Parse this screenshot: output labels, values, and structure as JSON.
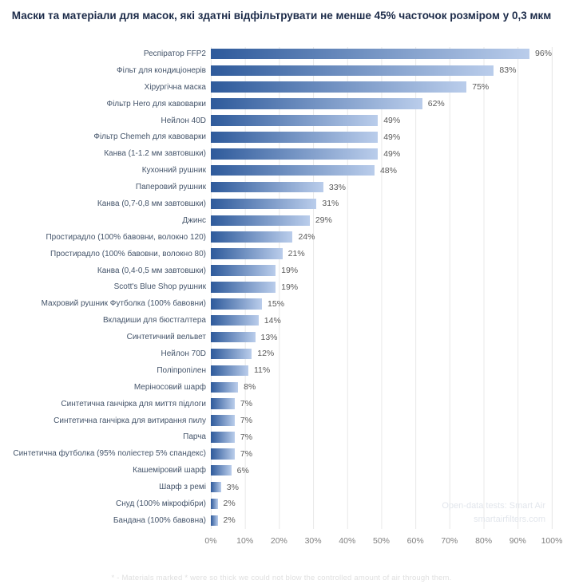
{
  "title": "Маски та матеріали для масок, які здатні відфільтрувати не менше 45% часточок розміром у 0,3 мкм",
  "chart_data": {
    "type": "bar",
    "orientation": "horizontal",
    "title": "Маски та матеріали для масок, які здатні відфільтрувати не менше 45% часточок розміром у 0,3 мкм",
    "categories": [
      "Респіратор FFP2",
      "Фільт для кондиціонерів",
      "Хірургічна маска",
      "Фільтр Hero для кавоварки",
      "Нейлон 40D",
      "Фільтр Chemeh для кавоварки",
      "Канва (1-1.2 мм завтовшки)",
      "Кухонний рушник",
      "Паперовий рушник",
      "Канва (0,7-0,8 мм завтовшки)",
      "Джинс",
      "Простирадло (100% бавовни, волокно 120)",
      "Простирадло (100% бавовни, волокно 80)",
      "Канва (0,4-0,5 мм завтовшки)",
      "Scott's Blue Shop рушник",
      "Махровий рушник Футболка (100% бавовни)",
      "Вкладиши для бюстгалтера",
      "Синтетичний вельвет",
      "Нейлон 70D",
      "Поліпропілен",
      "Меріносовий шарф",
      "Синтетична ганчірка для миття підлоги",
      "Синтетична ганчірка для витирання пилу",
      "Парча",
      "Синтетична футболка (95% поліестер 5% спандекс)",
      "Кашеміровий шарф",
      "Шарф з ремі",
      "Снуд (100% мікрофібри)",
      "Бандана (100% бавовна)"
    ],
    "values": [
      96,
      83,
      75,
      62,
      49,
      49,
      49,
      48,
      33,
      31,
      29,
      24,
      21,
      19,
      19,
      15,
      14,
      13,
      12,
      11,
      8,
      7,
      7,
      7,
      7,
      6,
      3,
      2,
      2
    ],
    "value_suffix": "%",
    "xlim": [
      0,
      100
    ],
    "x_ticks": [
      "0%",
      "10%",
      "20%",
      "30%",
      "40%",
      "50%",
      "60%",
      "70%",
      "80%",
      "90%",
      "100%"
    ],
    "grid": "vertical",
    "legend": "none",
    "bar_color_start": "#2E5A9B",
    "bar_color_end": "#BACDEB",
    "gridline_color": "#E8E8E8"
  },
  "watermark": {
    "line1": "Open-data tests: Smart Air",
    "line2": "smartairfilters.com"
  },
  "footnote": "* - Materials marked * were so thick we could not blow the controlled  amount of air through them."
}
